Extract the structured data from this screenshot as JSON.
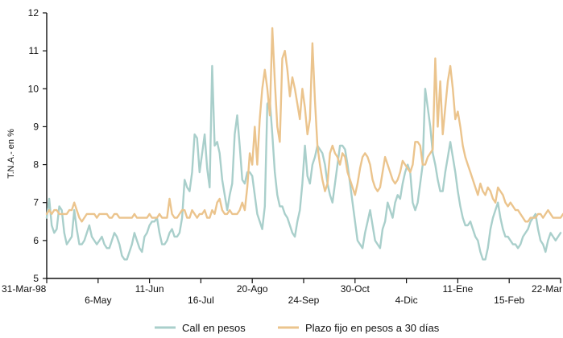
{
  "chart_data": {
    "type": "line",
    "ylabel": "T.N.A.- en %",
    "ylim": [
      5,
      12
    ],
    "yticks": [
      5,
      6,
      7,
      8,
      9,
      10,
      11,
      12
    ],
    "x_tick_labels": [
      {
        "label": "31-Mar-98",
        "row": 1
      },
      {
        "label": "6-May",
        "row": 2
      },
      {
        "label": "11-Jun",
        "row": 1
      },
      {
        "label": "16-Jul",
        "row": 2
      },
      {
        "label": "20-Ago",
        "row": 1
      },
      {
        "label": "24-Sep",
        "row": 2
      },
      {
        "label": "30-Oct",
        "row": 1
      },
      {
        "label": "4-Dic",
        "row": 2
      },
      {
        "label": "11-Ene",
        "row": 1
      },
      {
        "label": "15-Feb",
        "row": 2
      },
      {
        "label": "22-Mar",
        "row": 1
      }
    ],
    "grid": false,
    "legend_position": "bottom",
    "series": [
      {
        "name": "Call en pesos",
        "color": "#a9cfcb",
        "values": [
          6.6,
          7.1,
          6.4,
          6.2,
          6.3,
          6.9,
          6.8,
          6.2,
          5.9,
          6.0,
          6.1,
          6.8,
          6.3,
          5.9,
          5.9,
          6.0,
          6.2,
          6.4,
          6.1,
          6.0,
          5.9,
          6.0,
          6.1,
          5.9,
          5.8,
          5.8,
          6.0,
          6.2,
          6.1,
          5.9,
          5.6,
          5.5,
          5.5,
          5.7,
          5.9,
          6.2,
          6.0,
          5.8,
          5.7,
          6.1,
          6.2,
          6.4,
          6.5,
          6.5,
          6.6,
          6.2,
          5.9,
          5.9,
          6.0,
          6.2,
          6.3,
          6.1,
          6.1,
          6.2,
          6.6,
          7.6,
          7.4,
          7.3,
          7.8,
          8.8,
          8.7,
          7.8,
          8.3,
          8.8,
          7.9,
          7.4,
          10.6,
          8.5,
          8.6,
          8.3,
          7.6,
          7.2,
          6.8,
          7.2,
          7.5,
          8.8,
          9.3,
          8.5,
          7.6,
          7.5,
          7.8,
          7.8,
          7.7,
          7.2,
          6.7,
          6.5,
          6.3,
          6.9,
          9.6,
          9.7,
          8.8,
          7.8,
          7.2,
          6.9,
          6.9,
          6.7,
          6.6,
          6.4,
          6.2,
          6.1,
          6.5,
          6.8,
          7.5,
          8.5,
          7.7,
          7.5,
          8.0,
          8.2,
          8.5,
          8.4,
          8.3,
          8.0,
          7.5,
          7.2,
          7.0,
          7.5,
          8.0,
          8.5,
          8.5,
          8.4,
          8.0,
          7.5,
          7.0,
          6.5,
          6.0,
          5.9,
          5.8,
          6.2,
          6.5,
          6.8,
          6.4,
          6.0,
          5.9,
          5.8,
          6.3,
          6.5,
          7.0,
          6.8,
          6.6,
          7.0,
          7.2,
          7.1,
          7.5,
          7.8,
          8.0,
          7.8,
          7.0,
          6.8,
          7.0,
          7.5,
          8.0,
          10.0,
          9.5,
          9.0,
          8.3,
          8.0,
          7.6,
          7.3,
          7.3,
          7.8,
          8.2,
          8.6,
          8.2,
          7.8,
          7.3,
          6.9,
          6.6,
          6.4,
          6.4,
          6.5,
          6.3,
          6.1,
          6.0,
          5.7,
          5.5,
          5.5,
          5.8,
          6.3,
          6.6,
          6.8,
          7.0,
          6.6,
          6.3,
          6.1,
          6.1,
          6.0,
          5.9,
          5.9,
          5.8,
          5.9,
          6.1,
          6.2,
          6.3,
          6.5,
          6.6,
          6.7,
          6.3,
          6.0,
          5.9,
          5.7,
          6.0,
          6.2,
          6.1,
          6.0,
          6.1,
          6.2
        ]
      },
      {
        "name": "Plazo fijo en pesos a 30 días",
        "color": "#ebc48d",
        "values": [
          6.7,
          6.8,
          6.7,
          6.8,
          6.8,
          6.7,
          6.7,
          6.7,
          6.7,
          6.8,
          6.8,
          7.0,
          6.8,
          6.6,
          6.5,
          6.6,
          6.7,
          6.7,
          6.7,
          6.7,
          6.6,
          6.7,
          6.7,
          6.7,
          6.7,
          6.6,
          6.6,
          6.7,
          6.7,
          6.6,
          6.6,
          6.6,
          6.6,
          6.6,
          6.6,
          6.7,
          6.6,
          6.6,
          6.6,
          6.6,
          6.6,
          6.7,
          6.6,
          6.6,
          6.6,
          6.7,
          6.6,
          6.6,
          6.6,
          7.1,
          6.7,
          6.6,
          6.6,
          6.7,
          6.8,
          6.8,
          6.6,
          6.6,
          6.8,
          6.7,
          6.6,
          6.7,
          6.7,
          6.8,
          6.6,
          6.6,
          6.8,
          6.7,
          7.0,
          7.1,
          6.8,
          6.7,
          6.7,
          6.8,
          6.7,
          6.7,
          6.7,
          6.8,
          7.0,
          6.8,
          7.4,
          8.3,
          8.0,
          9.0,
          8.0,
          9.2,
          10.0,
          10.5,
          10.0,
          9.3,
          11.6,
          10.2,
          9.0,
          8.6,
          10.8,
          11.0,
          10.5,
          9.8,
          10.3,
          10.0,
          9.6,
          9.2,
          10.0,
          9.5,
          8.8,
          9.2,
          11.2,
          9.7,
          8.5,
          8.0,
          7.6,
          7.3,
          7.5,
          8.3,
          8.5,
          8.3,
          8.2,
          8.0,
          8.3,
          8.2,
          7.8,
          7.6,
          7.4,
          7.2,
          7.5,
          7.9,
          8.2,
          8.3,
          8.2,
          8.0,
          7.6,
          7.4,
          7.3,
          7.4,
          7.8,
          8.2,
          8.0,
          7.8,
          7.6,
          7.5,
          7.6,
          7.8,
          8.1,
          8.0,
          7.9,
          7.8,
          8.0,
          8.6,
          8.6,
          8.5,
          8.0,
          8.0,
          8.2,
          8.3,
          8.4,
          10.8,
          9.0,
          10.2,
          8.8,
          9.5,
          10.2,
          10.6,
          10.0,
          9.2,
          9.4,
          9.0,
          8.5,
          8.2,
          8.0,
          7.8,
          7.6,
          7.4,
          7.2,
          7.5,
          7.3,
          7.2,
          7.4,
          7.3,
          7.1,
          7.0,
          7.4,
          7.3,
          7.2,
          7.0,
          6.9,
          7.0,
          6.9,
          6.8,
          6.8,
          6.7,
          6.6,
          6.5,
          6.5,
          6.6,
          6.6,
          6.6,
          6.7,
          6.7,
          6.6,
          6.7,
          6.8,
          6.7,
          6.6,
          6.6,
          6.6,
          6.6,
          6.7,
          6.6
        ]
      }
    ]
  }
}
